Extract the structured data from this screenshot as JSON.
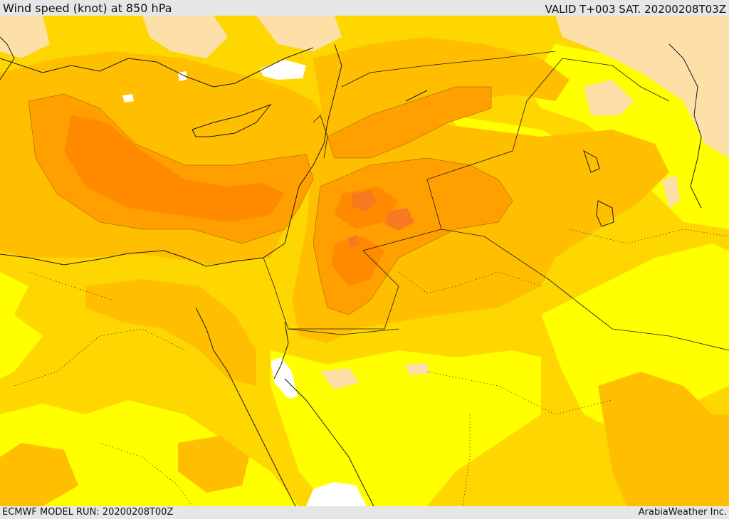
{
  "header": {
    "title": "Wind speed (knot) at 850 hPa",
    "valid_time": "VALID T+003 SAT. 20200208T03Z"
  },
  "footer": {
    "model_run": "ECMWF MODEL RUN: 20200208T00Z",
    "credit": "ArabiaWeather Inc."
  },
  "map": {
    "colors": {
      "white": "#ffffff",
      "cream": "#fde0a8",
      "yellow": "#ffff00",
      "gold": "#ffd700",
      "amber": "#ffbf00",
      "orange": "#ffa000",
      "dark_orange": "#ff8a00",
      "deep_orange": "#f77a20",
      "line": "#1a1a1a"
    }
  }
}
